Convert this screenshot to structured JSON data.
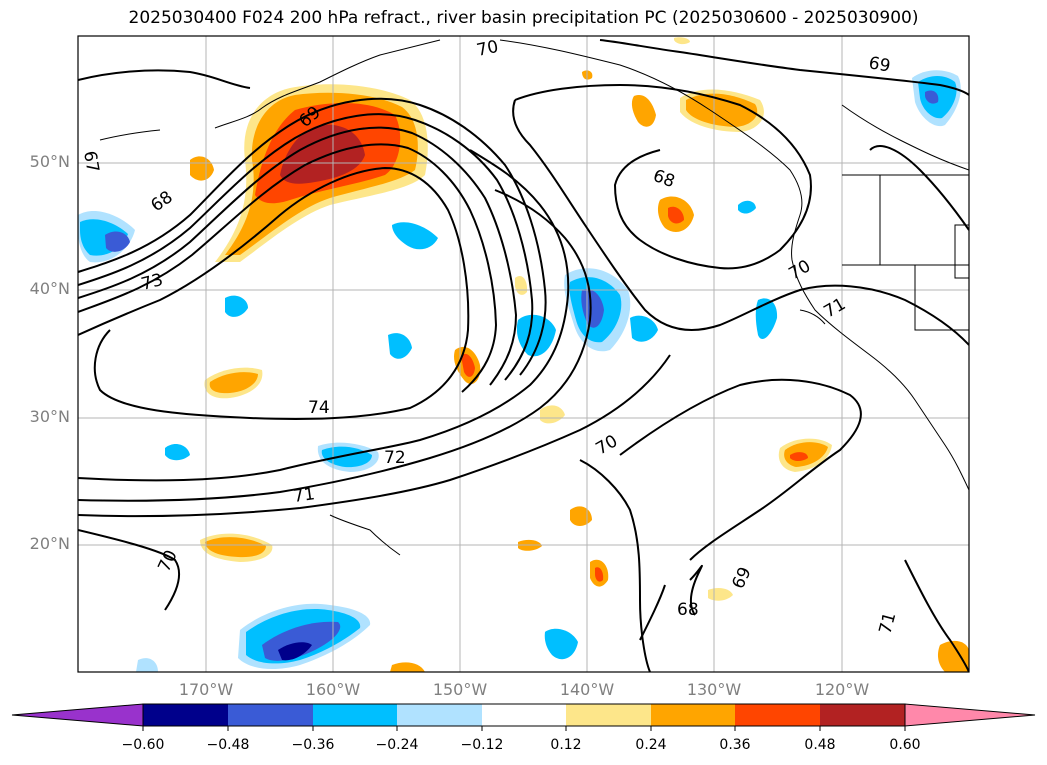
{
  "title": "2025030400 F024 200 hPa refract., river basin precipitation PC (2025030600 - 2025030900)",
  "lat_labels": [
    "50°N",
    "40°N",
    "30°N",
    "20°N"
  ],
  "lon_labels": [
    "170°W",
    "160°W",
    "150°W",
    "140°W",
    "130°W",
    "120°W"
  ],
  "contour_labels": [
    "70",
    "69",
    "68",
    "67",
    "68",
    "73",
    "74",
    "72",
    "71",
    "70",
    "70",
    "69",
    "68",
    "71",
    "70",
    "71"
  ],
  "colorbar": {
    "ticks": [
      "−0.60",
      "−0.48",
      "−0.36",
      "−0.24",
      "−0.12",
      "0.12",
      "0.24",
      "0.36",
      "0.48",
      "0.60"
    ],
    "colors": [
      "#9932cc",
      "#00008b",
      "#3a5bd6",
      "#00bfff",
      "#b0e2ff",
      "#ffffff",
      "#fde68a",
      "#ffa500",
      "#ff4500",
      "#b22222",
      "#ff88aa"
    ]
  }
}
